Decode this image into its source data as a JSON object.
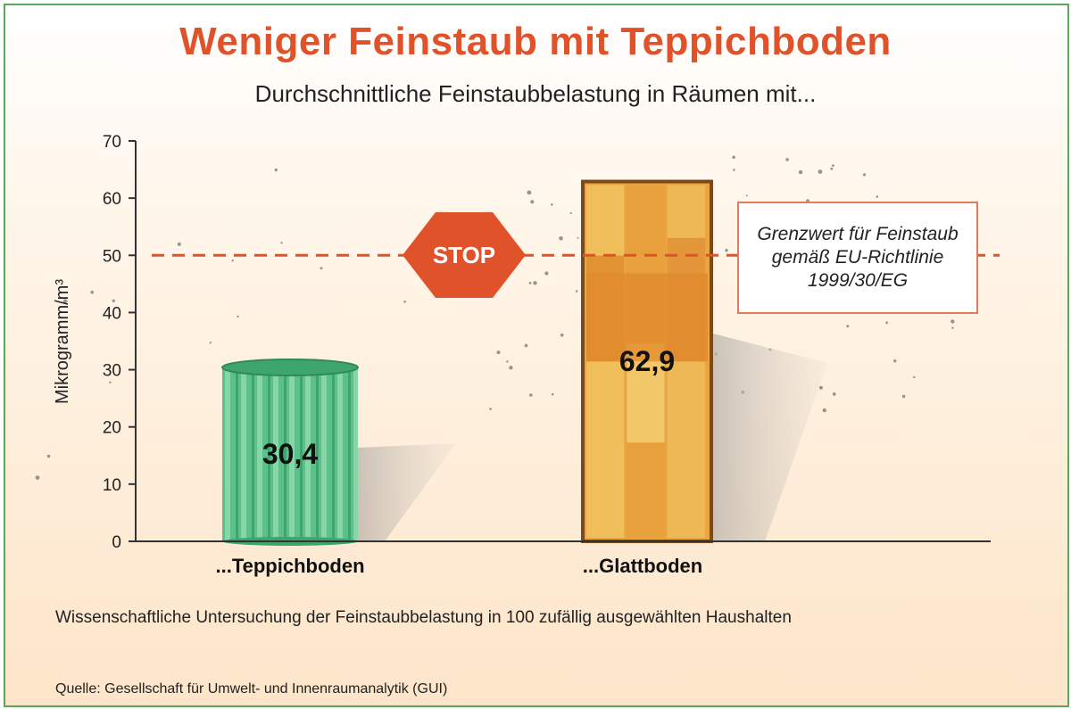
{
  "chart_data": {
    "type": "bar",
    "title": "Weniger Feinstaub mit Teppichboden",
    "subtitle": "Durchschnittliche Feinstaubbelastung in Räumen mit...",
    "ylabel": "Mikrogramm/m³",
    "ylim": [
      0,
      70
    ],
    "yticks": [
      "0",
      "10",
      "20",
      "30",
      "40",
      "50",
      "60",
      "70"
    ],
    "categories": [
      "...Teppichboden",
      "...Glattboden"
    ],
    "values": [
      30.4,
      62.9
    ],
    "value_labels": [
      "30,4",
      "62,9"
    ],
    "bar_colors": [
      "#5cc08a",
      "#e8a23c"
    ],
    "threshold": {
      "value": 50,
      "color": "#e0522a",
      "sign": "STOP",
      "label": "Grenzwert für Feinstaub gemäß EU-Richtlinie 1999/30/EG"
    },
    "grid": false
  },
  "footnote": "Wissenschaftliche Untersuchung der Feinstaubbelastung in 100 zufällig ausgewählten Haushalten",
  "source": "Quelle: Gesellschaft für Umwelt- und Innenraumanalytik (GUI)"
}
